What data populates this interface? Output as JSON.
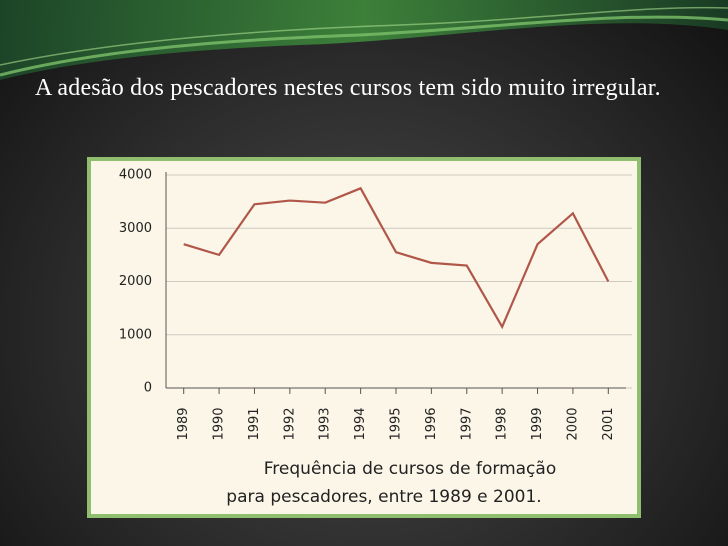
{
  "slide": {
    "text": "A adesão dos pescadores nestes cursos tem sido muito irregular."
  },
  "chart_data": {
    "type": "line",
    "categories": [
      "1989",
      "1990",
      "1991",
      "1992",
      "1993",
      "1994",
      "1995",
      "1996",
      "1997",
      "1998",
      "1999",
      "2000",
      "2001"
    ],
    "values": [
      2700,
      2500,
      3450,
      3520,
      3480,
      3750,
      2550,
      2350,
      2300,
      1150,
      2700,
      3280,
      2000
    ],
    "color": "#b0574a",
    "ylim": [
      0,
      4000
    ],
    "yticks": [
      0,
      1000,
      2000,
      3000,
      4000
    ],
    "grid": true,
    "caption": [
      "Frequência de cursos de formação",
      "para pescadores, entre 1989 e 2001."
    ]
  }
}
